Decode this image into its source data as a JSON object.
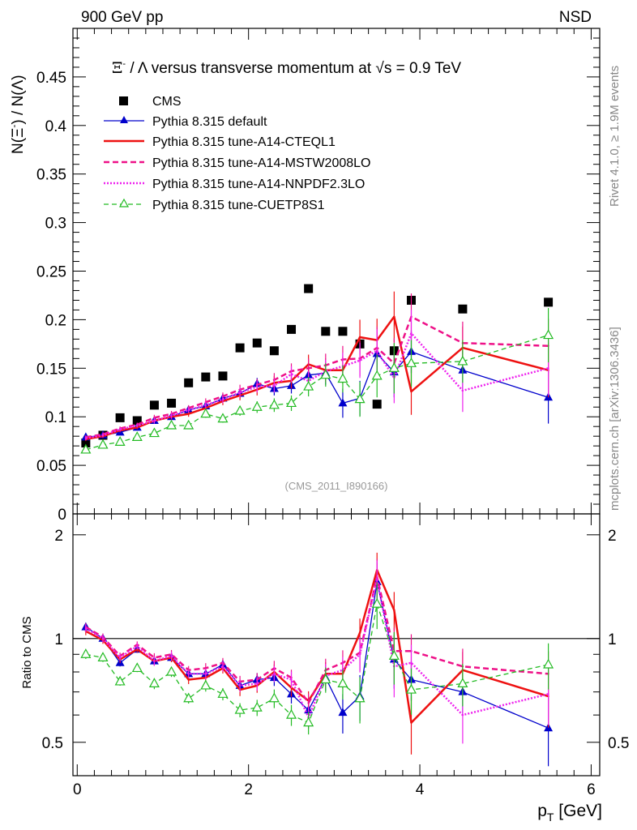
{
  "header": {
    "left_label": "900 GeV pp",
    "right_label": "NSD"
  },
  "side_labels": {
    "rivet": "Rivet 4.1.0, ≥ 1.9M events",
    "mcplots": "mcplots.cern.ch [arXiv:1306.3436]"
  },
  "watermark": "(CMS_2011_I890166)",
  "colors": {
    "cms": "#000000",
    "default": "#0000cc",
    "cteql1": "#ee1111",
    "mstw": "#ee1188",
    "nnpdf": "#ee22ee",
    "cuetp8s1": "#22bb22"
  },
  "chart_data": [
    {
      "type": "line",
      "name": "main",
      "title": "Ξ⁻ / Λ versus transverse momentum at √s = 0.9 TeV",
      "title_parts": {
        "xi": "Ξ",
        "xi_sup": "-",
        "rest": " / Λ versus transverse momentum at ",
        "sqrt": "√",
        "s_eq": "s = 0.9 TeV"
      },
      "ylabel": "N(Ξ⁻)  / N(Λ)",
      "ylabel_parts": {
        "n1": "N(Ξ",
        "sup": "-",
        "n2": ")  /  N(Λ)"
      },
      "xlabel": "",
      "xlim": [
        -0.05,
        6.1
      ],
      "ylim": [
        0,
        0.5
      ],
      "yticks": [
        0,
        0.05,
        0.1,
        0.15,
        0.2,
        0.25,
        0.3,
        0.35,
        0.4,
        0.45
      ],
      "ytick_labels": [
        "0",
        "0.05",
        "0.1",
        "0.15",
        "0.2",
        "0.25",
        "0.3",
        "0.35",
        "0.4",
        "0.45"
      ],
      "x": [
        0.1,
        0.3,
        0.5,
        0.7,
        0.9,
        1.1,
        1.3,
        1.5,
        1.7,
        1.9,
        2.1,
        2.3,
        2.5,
        2.7,
        2.9,
        3.1,
        3.3,
        3.5,
        3.7,
        3.9,
        4.5,
        5.5
      ],
      "series": [
        {
          "key": "cms",
          "name": "CMS",
          "values": [
            0.073,
            0.081,
            0.099,
            0.096,
            0.112,
            0.114,
            0.135,
            0.141,
            0.142,
            0.171,
            0.176,
            0.168,
            0.19,
            0.232,
            0.188,
            0.188,
            0.175,
            0.113,
            0.168,
            0.22,
            0.211,
            0.218
          ]
        },
        {
          "key": "default",
          "name": "Pythia 8.315 default",
          "values": [
            0.079,
            0.081,
            0.084,
            0.089,
            0.096,
            0.1,
            0.107,
            0.111,
            0.119,
            0.124,
            0.134,
            0.129,
            0.132,
            0.143,
            0.145,
            0.114,
            0.119,
            0.165,
            0.146,
            0.167,
            0.148,
            0.12
          ],
          "errors": [
            0.002,
            0.002,
            0.002,
            0.002,
            0.002,
            0.003,
            0.003,
            0.003,
            0.004,
            0.005,
            0.006,
            0.007,
            0.008,
            0.01,
            0.012,
            0.015,
            0.018,
            0.022,
            0.026,
            0.022,
            0.02,
            0.027
          ]
        },
        {
          "key": "cteql1",
          "name": "Pythia 8.315 tune-A14-CTEQL1",
          "values": [
            0.077,
            0.08,
            0.086,
            0.089,
            0.096,
            0.1,
            0.103,
            0.109,
            0.116,
            0.122,
            0.128,
            0.135,
            0.137,
            0.154,
            0.148,
            0.148,
            0.182,
            0.179,
            0.203,
            0.126,
            0.171,
            0.148
          ],
          "errors": [
            0.002,
            0.002,
            0.002,
            0.002,
            0.003,
            0.003,
            0.003,
            0.004,
            0.004,
            0.005,
            0.006,
            0.007,
            0.008,
            0.01,
            0.012,
            0.014,
            0.018,
            0.022,
            0.026,
            0.024,
            0.022,
            0.028
          ]
        },
        {
          "key": "mstw",
          "name": "Pythia 8.315 tune-A14-MSTW2008LO",
          "values": [
            0.079,
            0.082,
            0.088,
            0.092,
            0.099,
            0.103,
            0.109,
            0.115,
            0.121,
            0.128,
            0.133,
            0.138,
            0.147,
            0.15,
            0.153,
            0.159,
            0.16,
            0.171,
            0.155,
            0.203,
            0.176,
            0.173
          ],
          "errors": [
            0.002,
            0.002,
            0.002,
            0.002,
            0.003,
            0.003,
            0.003,
            0.004,
            0.004,
            0.005,
            0.006,
            0.007,
            0.008,
            0.01,
            0.012,
            0.014,
            0.018,
            0.022,
            0.026,
            0.024,
            0.022,
            0.028
          ]
        },
        {
          "key": "nnpdf",
          "name": "Pythia 8.315 tune-A14-NNPDF2.3LO",
          "values": [
            0.078,
            0.081,
            0.087,
            0.091,
            0.096,
            0.101,
            0.107,
            0.112,
            0.118,
            0.125,
            0.131,
            0.132,
            0.144,
            0.137,
            0.147,
            0.152,
            0.158,
            0.168,
            0.14,
            0.186,
            0.127,
            0.15
          ],
          "errors": [
            0.002,
            0.002,
            0.002,
            0.002,
            0.003,
            0.003,
            0.003,
            0.004,
            0.004,
            0.005,
            0.006,
            0.007,
            0.008,
            0.01,
            0.012,
            0.014,
            0.018,
            0.022,
            0.026,
            0.024,
            0.022,
            0.028
          ]
        },
        {
          "key": "cuetp8s1",
          "name": "Pythia 8.315 tune-CUETP8S1",
          "values": [
            0.066,
            0.071,
            0.074,
            0.079,
            0.083,
            0.091,
            0.091,
            0.103,
            0.098,
            0.106,
            0.11,
            0.112,
            0.114,
            0.131,
            0.143,
            0.139,
            0.118,
            0.142,
            0.15,
            0.155,
            0.157,
            0.184
          ],
          "errors": [
            0.002,
            0.002,
            0.002,
            0.002,
            0.003,
            0.003,
            0.003,
            0.004,
            0.004,
            0.005,
            0.006,
            0.007,
            0.008,
            0.01,
            0.012,
            0.014,
            0.018,
            0.022,
            0.026,
            0.024,
            0.022,
            0.028
          ]
        }
      ]
    },
    {
      "type": "line",
      "name": "ratio",
      "ylabel": "Ratio to CMS",
      "xlabel": "p_T [GeV]",
      "xlabel_parts": {
        "p": "p",
        "sub": "T",
        "unit": " [GeV]"
      },
      "xlim": [
        -0.05,
        6.1
      ],
      "ylim": [
        0.4,
        2.3
      ],
      "log_y": true,
      "yticks": [
        0.5,
        1,
        2
      ],
      "ytick_labels": [
        "0.5",
        "1",
        "2"
      ],
      "xticks": [
        0,
        2,
        4,
        6
      ],
      "xtick_labels": [
        "0",
        "2",
        "4",
        "6"
      ],
      "reference_line": 1,
      "x": [
        0.1,
        0.3,
        0.5,
        0.7,
        0.9,
        1.1,
        1.3,
        1.5,
        1.7,
        1.9,
        2.1,
        2.3,
        2.5,
        2.7,
        2.9,
        3.1,
        3.3,
        3.5,
        3.7,
        3.9,
        4.5,
        5.5
      ],
      "series": [
        {
          "key": "default",
          "name": "Pythia 8.315 default",
          "values": [
            1.08,
            1.0,
            0.85,
            0.93,
            0.86,
            0.88,
            0.79,
            0.79,
            0.84,
            0.73,
            0.76,
            0.77,
            0.69,
            0.62,
            0.77,
            0.61,
            0.68,
            1.46,
            0.87,
            0.76,
            0.7,
            0.55
          ]
        },
        {
          "key": "cteql1",
          "name": "Pythia 8.315 tune-A14-CTEQL1",
          "values": [
            1.05,
            0.99,
            0.87,
            0.93,
            0.86,
            0.88,
            0.76,
            0.77,
            0.82,
            0.71,
            0.73,
            0.8,
            0.72,
            0.66,
            0.79,
            0.79,
            1.04,
            1.58,
            1.21,
            0.57,
            0.81,
            0.68
          ]
        },
        {
          "key": "mstw",
          "name": "Pythia 8.315 tune-A14-MSTW2008LO",
          "values": [
            1.08,
            1.01,
            0.89,
            0.96,
            0.88,
            0.9,
            0.81,
            0.82,
            0.85,
            0.75,
            0.76,
            0.82,
            0.77,
            0.65,
            0.81,
            0.85,
            0.91,
            1.51,
            0.92,
            0.92,
            0.83,
            0.79
          ]
        },
        {
          "key": "nnpdf",
          "name": "Pythia 8.315 tune-A14-NNPDF2.3LO",
          "values": [
            1.07,
            1.0,
            0.88,
            0.95,
            0.86,
            0.89,
            0.79,
            0.79,
            0.83,
            0.73,
            0.74,
            0.79,
            0.76,
            0.59,
            0.78,
            0.81,
            0.9,
            1.49,
            0.83,
            0.85,
            0.6,
            0.69
          ]
        },
        {
          "key": "cuetp8s1",
          "name": "Pythia 8.315 tune-CUETP8S1",
          "values": [
            0.9,
            0.88,
            0.75,
            0.82,
            0.74,
            0.8,
            0.67,
            0.73,
            0.69,
            0.62,
            0.63,
            0.67,
            0.6,
            0.57,
            0.76,
            0.74,
            0.67,
            1.26,
            0.89,
            0.71,
            0.74,
            0.84
          ]
        }
      ]
    }
  ]
}
